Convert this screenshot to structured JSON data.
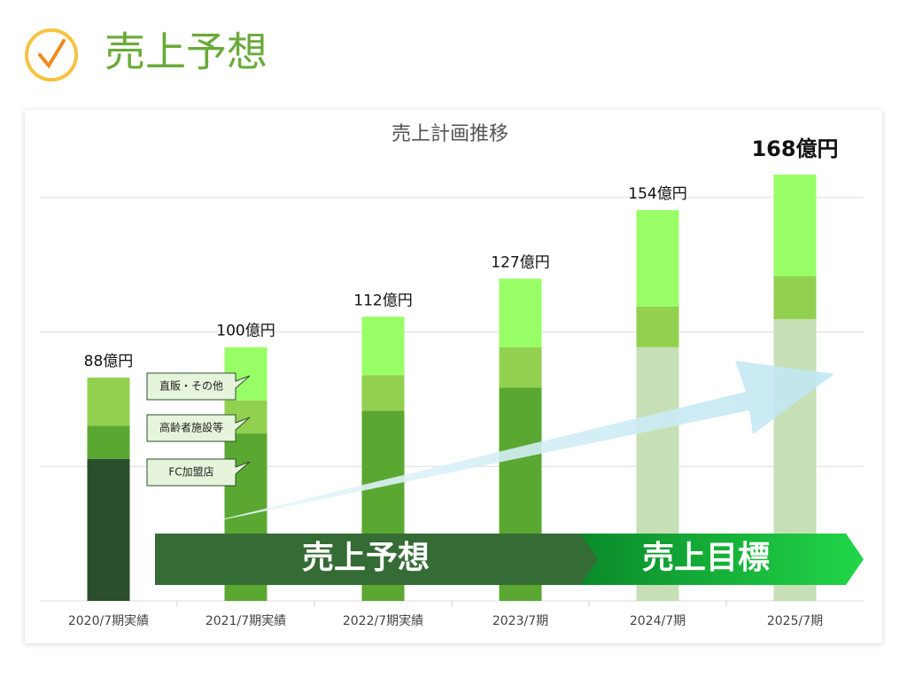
{
  "header": {
    "title": "売上予想"
  },
  "chart_data": {
    "type": "stacked_bar",
    "title": "売上計画推移",
    "categories": [
      "2020/7期実績",
      "2021/7期実績",
      "2022/7期実績",
      "2023/7期",
      "2024/7期",
      "2025/7期"
    ],
    "series": [
      {
        "name": "FC加盟店",
        "colors": [
          "#2b4f2b",
          "#5aa832",
          "#5aa832",
          "#5aa832",
          "#c6dfb6",
          "#c6dfb6"
        ],
        "values": [
          56,
          66,
          75,
          84,
          100,
          111
        ]
      },
      {
        "name": "高齢者施設等",
        "colors": [
          "#5aa832",
          "#92d050",
          "#92d050",
          "#92d050",
          "#92d050",
          "#92d050"
        ],
        "values": [
          13,
          13,
          14,
          16,
          16,
          17
        ]
      },
      {
        "name": "直販・その他",
        "colors": [
          "#92d050",
          "#99ff66",
          "#99ff66",
          "#99ff66",
          "#99ff66",
          "#99ff66"
        ],
        "values": [
          19,
          21,
          23,
          27,
          38,
          40
        ]
      }
    ],
    "totals": {
      "values": [
        88,
        100,
        112,
        127,
        154,
        168
      ],
      "value_labels": [
        "88億円",
        "100億円",
        "112億円",
        "127億円",
        "154億円",
        "168億円"
      ]
    },
    "ylim": [
      0,
      175
    ],
    "yticks": [
      0,
      53,
      106,
      159
    ],
    "grid": true,
    "annotations": [
      "売上予想",
      "売上目標"
    ]
  }
}
